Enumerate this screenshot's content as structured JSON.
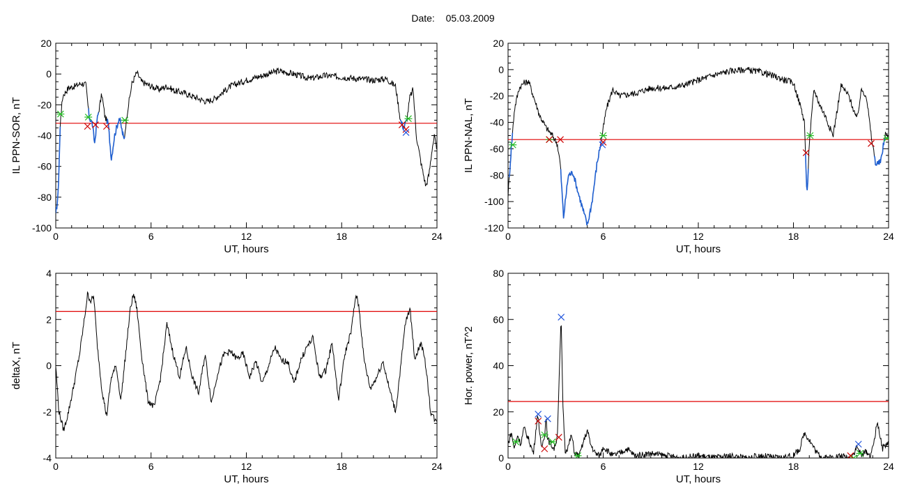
{
  "header": {
    "date_label": "Date:",
    "date_value": "05.03.2009"
  },
  "colors": {
    "trace": "#000000",
    "threshold": "#e00000",
    "below": "#1f5fd0",
    "marker_start": "#22bb22",
    "marker_end": "#cc0000",
    "marker_peak": "#2255dd"
  },
  "chart_data": [
    {
      "type": "line",
      "title": "",
      "xlabel": "UT, hours",
      "ylabel": "IL PPN-SOR, nT",
      "xlim": [
        0,
        24
      ],
      "ylim": [
        -100,
        20
      ],
      "xticks": [
        "0",
        "6",
        "12",
        "18",
        "24"
      ],
      "yticks": [
        "-100",
        "-80",
        "-60",
        "-40",
        "-20",
        "0",
        "20"
      ],
      "threshold": -32,
      "x": [
        0,
        0.15,
        0.3,
        0.45,
        0.8,
        1.2,
        1.6,
        1.9,
        2.1,
        2.3,
        2.45,
        2.6,
        2.9,
        3.1,
        3.3,
        3.5,
        3.7,
        4.0,
        4.3,
        4.5,
        4.8,
        5.1,
        5.4,
        6,
        6.5,
        7,
        7.5,
        8,
        8.5,
        9,
        9.5,
        10,
        11,
        12,
        13,
        14,
        15,
        16,
        17,
        18,
        19,
        20,
        20.8,
        21.4,
        21.7,
        21.9,
        22.1,
        22.3,
        22.5,
        22.7,
        23,
        23.3,
        23.5,
        23.7,
        23.85,
        24
      ],
      "y": [
        -92,
        -78,
        -28,
        -14,
        -9,
        -8,
        -6,
        -7,
        -28,
        -32,
        -45,
        -30,
        -13,
        -28,
        -32,
        -55,
        -40,
        -28,
        -43,
        -25,
        -6,
        1,
        -5,
        -8,
        -10,
        -8,
        -11,
        -12,
        -14,
        -16,
        -18,
        -16,
        -8,
        -4,
        -1,
        2,
        0,
        -3,
        -1,
        -2,
        -3,
        -4,
        -3,
        -8,
        -30,
        -35,
        -30,
        -15,
        -10,
        -40,
        -58,
        -73,
        -65,
        -48,
        -40,
        -52
      ],
      "below_segments": [
        [
          0,
          0.28
        ],
        [
          2.05,
          2.7
        ],
        [
          3.2,
          4.35
        ],
        [
          21.7,
          22.15
        ]
      ],
      "markers_start": [
        [
          0.3,
          -26
        ],
        [
          2.05,
          -28
        ],
        [
          4.35,
          -30
        ],
        [
          22.2,
          -29
        ]
      ],
      "markers_end": [
        [
          2.0,
          -34
        ],
        [
          2.5,
          -33
        ],
        [
          3.2,
          -34
        ],
        [
          21.8,
          -33
        ],
        [
          22.05,
          -36
        ]
      ],
      "markers_peak": [
        [
          22.05,
          -38
        ]
      ]
    },
    {
      "type": "line",
      "title": "",
      "xlabel": "UT, hours",
      "ylabel": "IL PPN-NAL, nT",
      "xlim": [
        0,
        24
      ],
      "ylim": [
        -120,
        20
      ],
      "xticks": [
        "0",
        "6",
        "12",
        "18",
        "24"
      ],
      "yticks": [
        "-120",
        "-100",
        "-80",
        "-60",
        "-40",
        "-20",
        "0",
        "20"
      ],
      "threshold": -53,
      "x": [
        0,
        0.2,
        0.4,
        0.7,
        1.0,
        1.3,
        1.6,
        2.0,
        2.4,
        2.8,
        3.1,
        3.3,
        3.5,
        3.8,
        4.1,
        4.4,
        4.7,
        5.0,
        5.3,
        5.6,
        5.9,
        6.2,
        6.6,
        7.0,
        8,
        9,
        10,
        11,
        12,
        13,
        14,
        15,
        16,
        17,
        18,
        18.5,
        18.7,
        18.85,
        19.0,
        19.3,
        19.6,
        20,
        20.5,
        21,
        21.5,
        22,
        22.3,
        22.6,
        22.9,
        23.2,
        23.5,
        23.8,
        24
      ],
      "y": [
        -95,
        -60,
        -30,
        -14,
        -10,
        -9,
        -20,
        -35,
        -44,
        -50,
        -56,
        -72,
        -112,
        -80,
        -78,
        -92,
        -105,
        -118,
        -100,
        -72,
        -52,
        -30,
        -15,
        -20,
        -18,
        -14,
        -14,
        -12,
        -8,
        -4,
        -1,
        0,
        -2,
        -6,
        -10,
        -30,
        -40,
        -98,
        -55,
        -15,
        -25,
        -35,
        -50,
        -12,
        -20,
        -38,
        -15,
        -20,
        -50,
        -72,
        -70,
        -48,
        -52
      ],
      "below_segments": [
        [
          0.05,
          0.3
        ],
        [
          3.3,
          5.9
        ],
        [
          18.75,
          18.95
        ],
        [
          23.1,
          23.8
        ]
      ],
      "markers_start": [
        [
          0.3,
          -57
        ],
        [
          2.6,
          -53
        ],
        [
          6.0,
          -50
        ],
        [
          19.05,
          -50
        ],
        [
          23.9,
          -52
        ]
      ],
      "markers_end": [
        [
          2.6,
          -53
        ],
        [
          3.3,
          -53
        ],
        [
          6.0,
          -55
        ],
        [
          18.8,
          -63
        ],
        [
          22.9,
          -56
        ]
      ],
      "markers_peak": [
        [
          5.95,
          -57
        ]
      ]
    },
    {
      "type": "line",
      "title": "",
      "xlabel": "UT, hours",
      "ylabel": "deltaX, nT",
      "xlim": [
        0,
        24
      ],
      "ylim": [
        -4,
        4
      ],
      "xticks": [
        "0",
        "6",
        "12",
        "18",
        "24"
      ],
      "yticks": [
        "-4",
        "-2",
        "0",
        "2",
        "4"
      ],
      "threshold": 2.35,
      "x": [
        0,
        0.2,
        0.5,
        0.8,
        1.1,
        1.5,
        1.8,
        2.0,
        2.2,
        2.4,
        2.6,
        2.9,
        3.2,
        3.5,
        3.8,
        4.1,
        4.4,
        4.7,
        4.9,
        5.1,
        5.4,
        5.8,
        6.2,
        6.6,
        7.0,
        7.4,
        7.8,
        8.2,
        8.6,
        9.0,
        9.4,
        9.8,
        10.2,
        10.6,
        11.0,
        11.4,
        11.8,
        12.2,
        12.6,
        13.0,
        13.4,
        13.8,
        14.2,
        14.6,
        15.0,
        15.4,
        15.8,
        16.2,
        16.6,
        17.0,
        17.4,
        17.8,
        18.2,
        18.6,
        18.9,
        19.1,
        19.4,
        19.8,
        20.2,
        20.6,
        21.0,
        21.4,
        21.8,
        22.0,
        22.3,
        22.6,
        23.0,
        23.3,
        23.6,
        24
      ],
      "y": [
        0,
        -2.0,
        -2.8,
        -2.0,
        -1.0,
        0.5,
        2.0,
        3.1,
        2.8,
        3.0,
        1.0,
        -1.0,
        -2.2,
        -0.5,
        0,
        -1.5,
        0.5,
        2.5,
        3.1,
        2.5,
        0.5,
        -1.5,
        -1.8,
        -0.5,
        1.8,
        0.5,
        -0.5,
        0.8,
        -0.5,
        -1.2,
        0.5,
        -1.6,
        -0.3,
        0.5,
        0.6,
        0.3,
        0.5,
        -0.5,
        0.2,
        -0.8,
        0,
        0.8,
        0.2,
        0.2,
        -0.8,
        0.2,
        0.8,
        1.2,
        -0.5,
        -0.2,
        1.0,
        -1.5,
        0.5,
        1.5,
        3.1,
        2.5,
        0.3,
        -1.0,
        -0.5,
        0.2,
        -1.0,
        -2.0,
        0.5,
        1.8,
        2.5,
        0.3,
        1.0,
        0,
        -2.0,
        -2.5
      ]
    },
    {
      "type": "line",
      "title": "",
      "xlabel": "UT, hours",
      "ylabel": "Hor. power, nT^2",
      "xlim": [
        0,
        24
      ],
      "ylim": [
        0,
        80
      ],
      "xticks": [
        "0",
        "6",
        "12",
        "18",
        "24"
      ],
      "yticks": [
        "0",
        "20",
        "40",
        "60",
        "80"
      ],
      "threshold": 24.5,
      "x": [
        0,
        0.2,
        0.4,
        0.6,
        0.8,
        1.0,
        1.3,
        1.6,
        1.8,
        1.9,
        2.0,
        2.1,
        2.3,
        2.4,
        2.5,
        2.7,
        2.9,
        3.1,
        3.25,
        3.35,
        3.45,
        3.6,
        3.8,
        4.0,
        4.2,
        4.5,
        4.8,
        5.0,
        5.2,
        5.5,
        5.8,
        6.0,
        6.3,
        6.6,
        7.0,
        7.5,
        8.0,
        9,
        10,
        11,
        12,
        13,
        14,
        15,
        16,
        17,
        18,
        18.4,
        18.7,
        19.0,
        19.5,
        20,
        21,
        21.5,
        21.8,
        22.0,
        22.3,
        22.6,
        22.8,
        23.0,
        23.3,
        23.6,
        24
      ],
      "y": [
        6,
        11,
        4,
        10,
        6,
        13,
        8,
        2,
        15,
        19,
        10,
        4,
        10,
        18,
        8,
        6,
        4,
        9,
        40,
        61,
        25,
        3,
        5,
        10,
        2,
        1,
        8,
        12,
        6,
        2,
        1,
        5,
        3,
        1,
        2,
        4,
        1,
        2,
        1,
        0,
        1,
        0,
        1,
        0,
        1,
        0,
        1,
        4,
        11,
        8,
        2,
        0,
        1,
        0,
        2,
        5,
        1,
        3,
        1,
        4,
        16,
        4,
        7
      ],
      "markers_start": [
        [
          0.5,
          7
        ],
        [
          2.3,
          10
        ],
        [
          2.8,
          7
        ],
        [
          4.4,
          1
        ],
        [
          21.8,
          0
        ],
        [
          22.2,
          2
        ]
      ],
      "markers_end": [
        [
          1.9,
          16
        ],
        [
          2.3,
          4
        ],
        [
          3.2,
          9
        ],
        [
          21.6,
          1
        ]
      ],
      "markers_peak": [
        [
          1.9,
          19
        ],
        [
          2.5,
          17
        ],
        [
          3.35,
          61
        ],
        [
          22.1,
          6
        ]
      ]
    }
  ]
}
